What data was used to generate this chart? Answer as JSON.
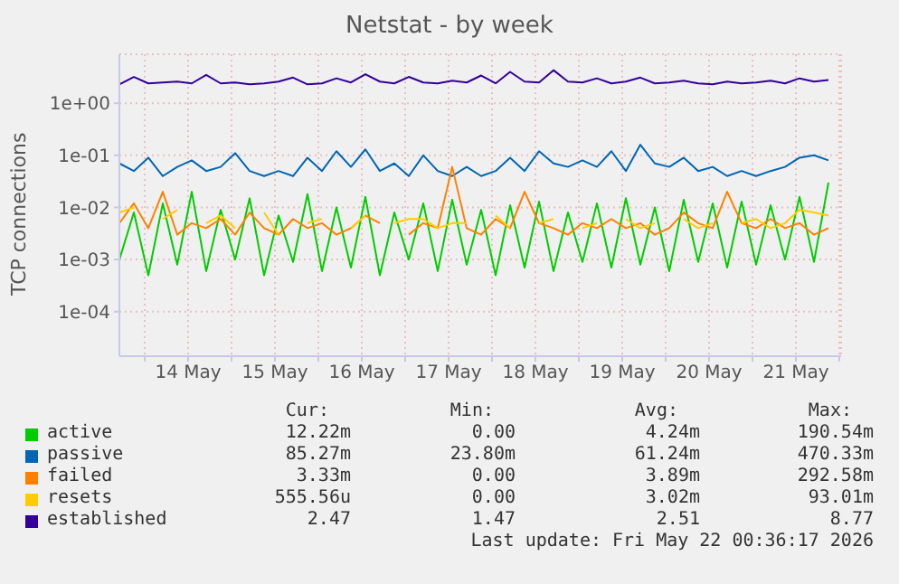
{
  "chart_data": {
    "type": "line",
    "title": "Netstat - by week",
    "ylabel": "TCP connections",
    "log": "y",
    "grid": true,
    "legend": "bottom",
    "marker": "none",
    "line_style": "solid",
    "ylim": [
      1.4e-05,
      8.7
    ],
    "yticks": [
      {
        "value": 0.0001,
        "label": "1e-04"
      },
      {
        "value": 0.001,
        "label": "1e-03"
      },
      {
        "value": 0.01,
        "label": "1e-02"
      },
      {
        "value": 0.1,
        "label": "1e-01"
      },
      {
        "value": 1,
        "label": "1e+00"
      }
    ],
    "xlim": [
      "2026-05-13T17:00",
      "2026-05-22T00:30"
    ],
    "xticks": [
      {
        "value": "2026-05-14T00:00",
        "label": null
      },
      {
        "value": "2026-05-14T12:00",
        "label": "14 May"
      },
      {
        "value": "2026-05-15T00:00",
        "label": null
      },
      {
        "value": "2026-05-15T12:00",
        "label": "15 May"
      },
      {
        "value": "2026-05-16T00:00",
        "label": null
      },
      {
        "value": "2026-05-16T12:00",
        "label": "16 May"
      },
      {
        "value": "2026-05-17T00:00",
        "label": null
      },
      {
        "value": "2026-05-17T12:00",
        "label": "17 May"
      },
      {
        "value": "2026-05-18T00:00",
        "label": null
      },
      {
        "value": "2026-05-18T12:00",
        "label": "18 May"
      },
      {
        "value": "2026-05-19T00:00",
        "label": null
      },
      {
        "value": "2026-05-19T12:00",
        "label": "19 May"
      },
      {
        "value": "2026-05-20T00:00",
        "label": null
      },
      {
        "value": "2026-05-20T12:00",
        "label": "20 May"
      },
      {
        "value": "2026-05-21T00:00",
        "label": null
      },
      {
        "value": "2026-05-21T12:00",
        "label": "21 May"
      },
      {
        "value": "2026-05-22T00:00",
        "label": null
      }
    ],
    "x": [
      "2026-05-13T17:00",
      "2026-05-13T21:00",
      "2026-05-14T01:00",
      "2026-05-14T05:00",
      "2026-05-14T09:00",
      "2026-05-14T13:00",
      "2026-05-14T17:00",
      "2026-05-14T21:00",
      "2026-05-15T01:00",
      "2026-05-15T05:00",
      "2026-05-15T09:00",
      "2026-05-15T13:00",
      "2026-05-15T17:00",
      "2026-05-15T21:00",
      "2026-05-16T01:00",
      "2026-05-16T05:00",
      "2026-05-16T09:00",
      "2026-05-16T13:00",
      "2026-05-16T17:00",
      "2026-05-16T21:00",
      "2026-05-17T01:00",
      "2026-05-17T05:00",
      "2026-05-17T09:00",
      "2026-05-17T13:00",
      "2026-05-17T17:00",
      "2026-05-17T21:00",
      "2026-05-18T01:00",
      "2026-05-18T05:00",
      "2026-05-18T09:00",
      "2026-05-18T13:00",
      "2026-05-18T17:00",
      "2026-05-18T21:00",
      "2026-05-19T01:00",
      "2026-05-19T05:00",
      "2026-05-19T09:00",
      "2026-05-19T13:00",
      "2026-05-19T17:00",
      "2026-05-19T21:00",
      "2026-05-20T01:00",
      "2026-05-20T05:00",
      "2026-05-20T09:00",
      "2026-05-20T13:00",
      "2026-05-20T17:00",
      "2026-05-20T21:00",
      "2026-05-21T01:00",
      "2026-05-21T05:00",
      "2026-05-21T09:00",
      "2026-05-21T13:00",
      "2026-05-21T17:00",
      "2026-05-21T21:00"
    ],
    "series": [
      {
        "name": "active",
        "color": "#00cc00",
        "values": [
          0.001,
          0.008,
          0.0005,
          0.012,
          0.0008,
          0.02,
          0.0006,
          0.009,
          0.001,
          0.015,
          0.0005,
          0.007,
          0.0009,
          0.018,
          0.0006,
          0.01,
          0.0007,
          0.016,
          0.0005,
          0.008,
          0.001,
          0.012,
          0.0006,
          0.014,
          0.0008,
          0.009,
          0.0005,
          0.011,
          0.0007,
          0.013,
          0.0006,
          0.008,
          0.0009,
          0.012,
          0.0007,
          0.015,
          0.0008,
          0.01,
          0.0006,
          0.014,
          0.0009,
          0.012,
          0.0007,
          0.013,
          0.0008,
          0.011,
          0.001,
          0.016,
          0.0009,
          0.03
        ]
      },
      {
        "name": "passive",
        "color": "#0066b3",
        "values": [
          0.07,
          0.05,
          0.09,
          0.04,
          0.06,
          0.08,
          0.05,
          0.06,
          0.11,
          0.05,
          0.04,
          0.05,
          0.04,
          0.09,
          0.05,
          0.12,
          0.06,
          0.13,
          0.05,
          0.07,
          0.04,
          0.1,
          0.05,
          0.04,
          0.06,
          0.04,
          0.05,
          0.09,
          0.05,
          0.12,
          0.07,
          0.06,
          0.08,
          0.06,
          0.12,
          0.05,
          0.16,
          0.07,
          0.06,
          0.09,
          0.05,
          0.06,
          0.04,
          0.05,
          0.04,
          0.05,
          0.06,
          0.09,
          0.1,
          0.08
        ]
      },
      {
        "name": "failed",
        "color": "#ff8000",
        "values": [
          0.005,
          0.012,
          0.004,
          0.02,
          0.003,
          0.005,
          0.004,
          0.006,
          0.003,
          0.008,
          0.004,
          0.003,
          0.006,
          0.004,
          0.005,
          0.003,
          0.004,
          0.007,
          0.005,
          null,
          0.003,
          0.005,
          0.004,
          0.06,
          0.004,
          0.003,
          0.006,
          0.004,
          0.02,
          0.005,
          0.004,
          0.003,
          0.005,
          0.004,
          0.006,
          0.004,
          0.005,
          0.003,
          0.004,
          0.008,
          0.005,
          0.004,
          0.02,
          0.005,
          0.004,
          0.006,
          0.004,
          0.005,
          0.003,
          0.004
        ]
      },
      {
        "name": "resets",
        "color": "#ffcc00",
        "values": [
          0.008,
          0.01,
          null,
          0.006,
          0.009,
          null,
          0.005,
          0.007,
          0.004,
          null,
          0.008,
          0.003,
          null,
          0.005,
          0.006,
          null,
          0.004,
          0.007,
          null,
          0.005,
          0.006,
          0.006,
          0.004,
          0.005,
          0.005,
          null,
          0.007,
          0.004,
          null,
          0.005,
          0.006,
          null,
          0.004,
          0.005,
          null,
          0.006,
          0.004,
          0.005,
          null,
          0.006,
          0.004,
          0.005,
          null,
          0.005,
          0.006,
          0.004,
          0.005,
          0.009,
          0.008,
          0.007
        ]
      },
      {
        "name": "established",
        "color": "#330099",
        "values": [
          2.3,
          3.2,
          2.4,
          2.5,
          2.6,
          2.4,
          3.5,
          2.4,
          2.5,
          2.3,
          2.4,
          2.6,
          3.1,
          2.3,
          2.4,
          3.0,
          2.5,
          3.6,
          2.6,
          2.4,
          3.2,
          2.5,
          2.4,
          2.7,
          2.5,
          3.4,
          2.4,
          4.0,
          2.6,
          2.5,
          4.3,
          2.6,
          2.5,
          3.0,
          2.4,
          2.6,
          3.1,
          2.4,
          2.5,
          2.7,
          2.4,
          2.3,
          2.6,
          2.4,
          2.5,
          2.7,
          2.4,
          3.0,
          2.6,
          2.8
        ]
      }
    ],
    "annotations": [
      "Cur:",
      "Min:",
      "Avg:",
      "Max:",
      "12.22m",
      "0.00",
      "4.24m",
      "190.54m",
      "85.27m",
      "23.80m",
      "61.24m",
      "470.33m",
      "3.33m",
      "0.00",
      "3.89m",
      "292.58m",
      "555.56u",
      "0.00",
      "3.02m",
      "93.01m",
      "2.47",
      "1.47",
      "2.51",
      "8.77",
      "Last update: Fri May 22 00:36:17 2026"
    ]
  }
}
